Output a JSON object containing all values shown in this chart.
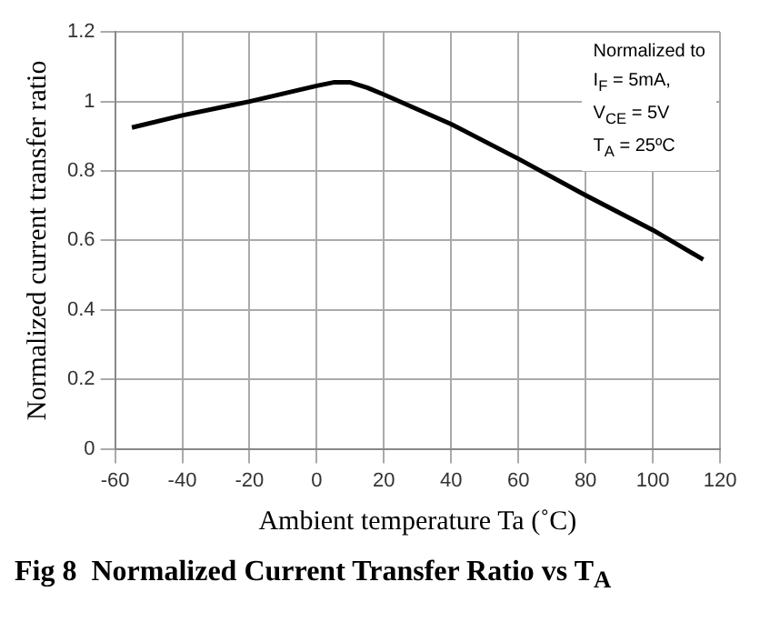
{
  "chart_data": {
    "type": "line",
    "title": "Fig 8  Normalized Current Transfer Ratio vs T$_{A}$",
    "xlabel": "Ambient temperature Ta (˚C)",
    "ylabel": "Normalized current transfer ratio",
    "annotations": [
      "Normalized to",
      "I$_{F}$ = 5mA,",
      "V$_{CE}$ = 5V",
      "T$_{A}$ = 25ºC"
    ],
    "x": [
      -55,
      -40,
      -20,
      0,
      5,
      10,
      15,
      20,
      40,
      60,
      80,
      100,
      115
    ],
    "series": [
      {
        "color": "#000000",
        "values": [
          0.925,
          0.96,
          1.0,
          1.045,
          1.055,
          1.055,
          1.04,
          1.02,
          0.935,
          0.835,
          0.73,
          0.63,
          0.545
        ]
      }
    ],
    "xlim": [
      -60,
      120
    ],
    "xticks": [
      -60,
      -40,
      -20,
      0,
      20,
      40,
      60,
      80,
      100,
      120
    ],
    "ylim": [
      0,
      1.2
    ],
    "yticks": [
      0,
      0.2,
      0.4,
      0.6,
      0.8,
      1,
      1.2
    ],
    "grid": true,
    "legend": false,
    "marker": "none",
    "line_style": "solid"
  }
}
